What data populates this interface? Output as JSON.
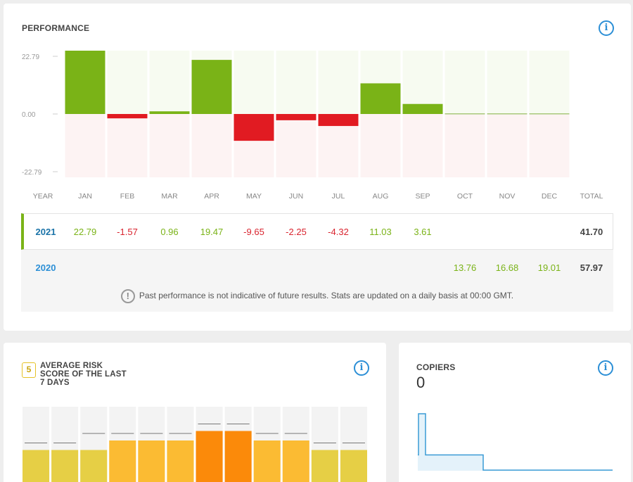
{
  "performance": {
    "title": "PERFORMANCE",
    "info_icon": "info-icon",
    "y_ticks": [
      "22.79",
      "0.00",
      "-22.79"
    ],
    "columns": [
      "YEAR",
      "JAN",
      "FEB",
      "MAR",
      "APR",
      "MAY",
      "JUN",
      "JUL",
      "AUG",
      "SEP",
      "OCT",
      "NOV",
      "DEC",
      "TOTAL"
    ],
    "rows": [
      {
        "year": "2021",
        "values": [
          "22.79",
          "-1.57",
          "0.96",
          "19.47",
          "-9.65",
          "-2.25",
          "-4.32",
          "11.03",
          "3.61",
          "",
          "",
          ""
        ],
        "total": "41.70"
      },
      {
        "year": "2020",
        "values": [
          "",
          "",
          "",
          "",
          "",
          "",
          "",
          "",
          "",
          "13.76",
          "16.68",
          "19.01"
        ],
        "total": "57.97"
      }
    ],
    "disclaimer": "Past performance is not indicative of future results. Stats are updated on a daily basis at 00:00 GMT.",
    "colors": {
      "positive": "#7ab317",
      "negative": "#e11b22"
    }
  },
  "chart_data": [
    {
      "type": "bar",
      "categories": [
        "JAN",
        "FEB",
        "MAR",
        "APR",
        "MAY",
        "JUN",
        "JUL",
        "AUG",
        "SEP",
        "OCT",
        "NOV",
        "DEC"
      ],
      "values": [
        22.79,
        -1.57,
        0.96,
        19.47,
        -9.65,
        -2.25,
        -4.32,
        11.03,
        3.61,
        0,
        0,
        0
      ],
      "ylim": [
        -22.79,
        22.79
      ],
      "title": "PERFORMANCE"
    },
    {
      "type": "bar",
      "categories": [
        "1",
        "2",
        "3",
        "4",
        "5",
        "6",
        "7",
        "8",
        "9",
        "10",
        "11",
        "12"
      ],
      "values": [
        5,
        5,
        5,
        6,
        6,
        6,
        7,
        7,
        6,
        6,
        5,
        5
      ],
      "prior_values": [
        5,
        5,
        6,
        6,
        6,
        6,
        7,
        7,
        6,
        6,
        5,
        5
      ],
      "ylim": [
        0,
        10
      ],
      "title": "AVERAGE RISK SCORE OF THE LAST 7 DAYS"
    },
    {
      "type": "area",
      "x": [
        0,
        1,
        2,
        3,
        4,
        5,
        6,
        7,
        8,
        9,
        10,
        11,
        12,
        13,
        14,
        15,
        16,
        17,
        18,
        19,
        20
      ],
      "values": [
        0.25,
        0.9,
        0.9,
        0.25,
        0.25,
        0.25,
        0.25,
        0.25,
        0.25,
        0.25,
        0.01,
        0.01,
        0.01,
        0.01,
        0.01,
        0.01,
        0.01,
        0.01,
        0.01,
        0.01,
        0.01
      ],
      "title": "COPIERS"
    }
  ],
  "risk": {
    "score": "5",
    "title": "AVERAGE RISK SCORE OF THE LAST 7 DAYS",
    "colors": {
      "5": "#e6cf45",
      "6": "#fbbb33",
      "7": "#fb8a0a"
    }
  },
  "copiers": {
    "title": "COPIERS",
    "value": "0",
    "color": "#3a9bd5"
  }
}
